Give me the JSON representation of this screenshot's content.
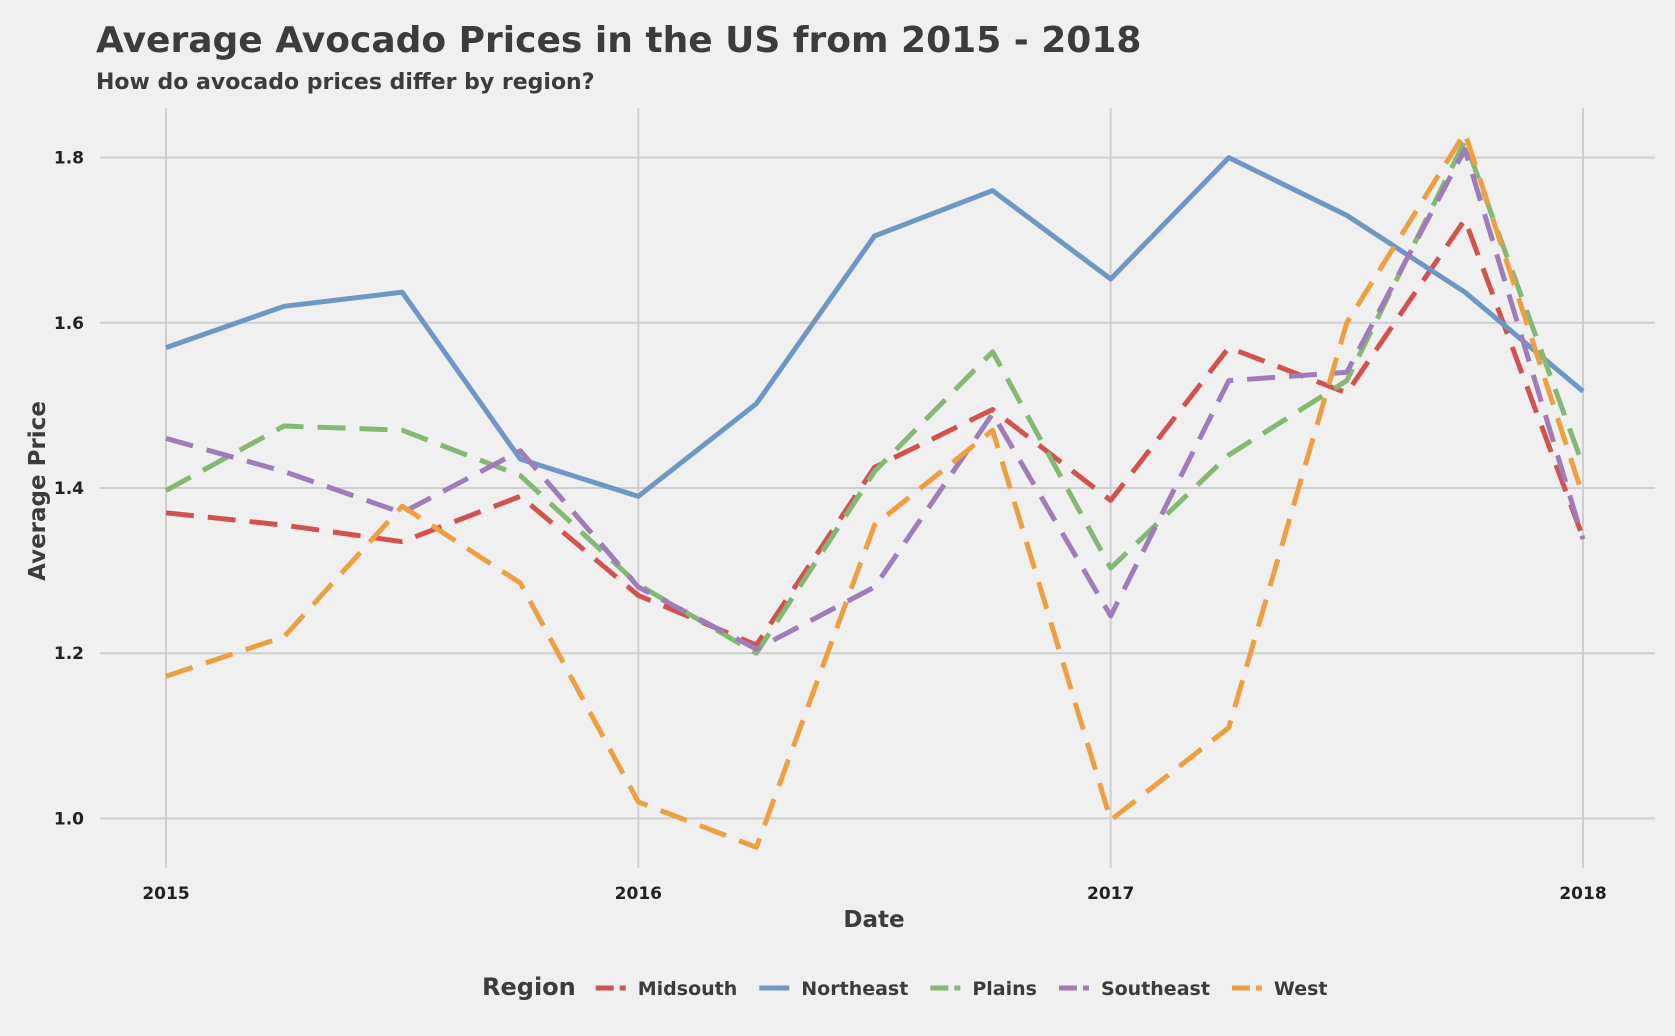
{
  "chart_data": {
    "type": "line",
    "title": "Average Avocado Prices in the US from 2015 - 2018",
    "subtitle": "How do avocado prices differ by region?",
    "xlabel": "Date",
    "ylabel": "Average Price",
    "x_ticks": [
      "2015",
      "2016",
      "2017",
      "2018"
    ],
    "y_ticks": [
      "1.0",
      "1.2",
      "1.4",
      "1.6",
      "1.8"
    ],
    "xlim": [
      2015.0,
      2018.0
    ],
    "ylim": [
      0.94,
      1.86
    ],
    "grid": true,
    "legend": {
      "title": "Region",
      "placement": "bottom"
    },
    "x": [
      "2015-01",
      "2015-04",
      "2015-07",
      "2015-10",
      "2016-01",
      "2016-04",
      "2016-07",
      "2016-10",
      "2017-01",
      "2017-04",
      "2017-07",
      "2017-10",
      "2018-01"
    ],
    "series": [
      {
        "name": "Midsouth",
        "color": "#d1534f",
        "dash": true,
        "values": [
          1.37,
          1.355,
          1.335,
          1.39,
          1.27,
          1.21,
          1.425,
          1.495,
          1.385,
          1.57,
          1.515,
          1.725,
          1.34
        ]
      },
      {
        "name": "Northeast",
        "color": "#6f97c5",
        "dash": false,
        "values": [
          1.57,
          1.62,
          1.637,
          1.435,
          1.39,
          1.502,
          1.705,
          1.76,
          1.653,
          1.8,
          1.73,
          1.637,
          1.517
        ]
      },
      {
        "name": "Plains",
        "color": "#84b874",
        "dash": true,
        "values": [
          1.397,
          1.475,
          1.47,
          1.415,
          1.283,
          1.2,
          1.42,
          1.565,
          1.303,
          1.44,
          1.53,
          1.82,
          1.427
        ]
      },
      {
        "name": "Southeast",
        "color": "#a07cb9",
        "dash": true,
        "values": [
          1.46,
          1.42,
          1.37,
          1.445,
          1.28,
          1.205,
          1.28,
          1.49,
          1.245,
          1.53,
          1.54,
          1.81,
          1.338
        ]
      },
      {
        "name": "West",
        "color": "#eda041",
        "dash": true,
        "values": [
          1.172,
          1.22,
          1.378,
          1.285,
          1.02,
          0.965,
          1.355,
          1.47,
          0.998,
          1.11,
          1.6,
          1.83,
          1.39
        ]
      }
    ]
  }
}
